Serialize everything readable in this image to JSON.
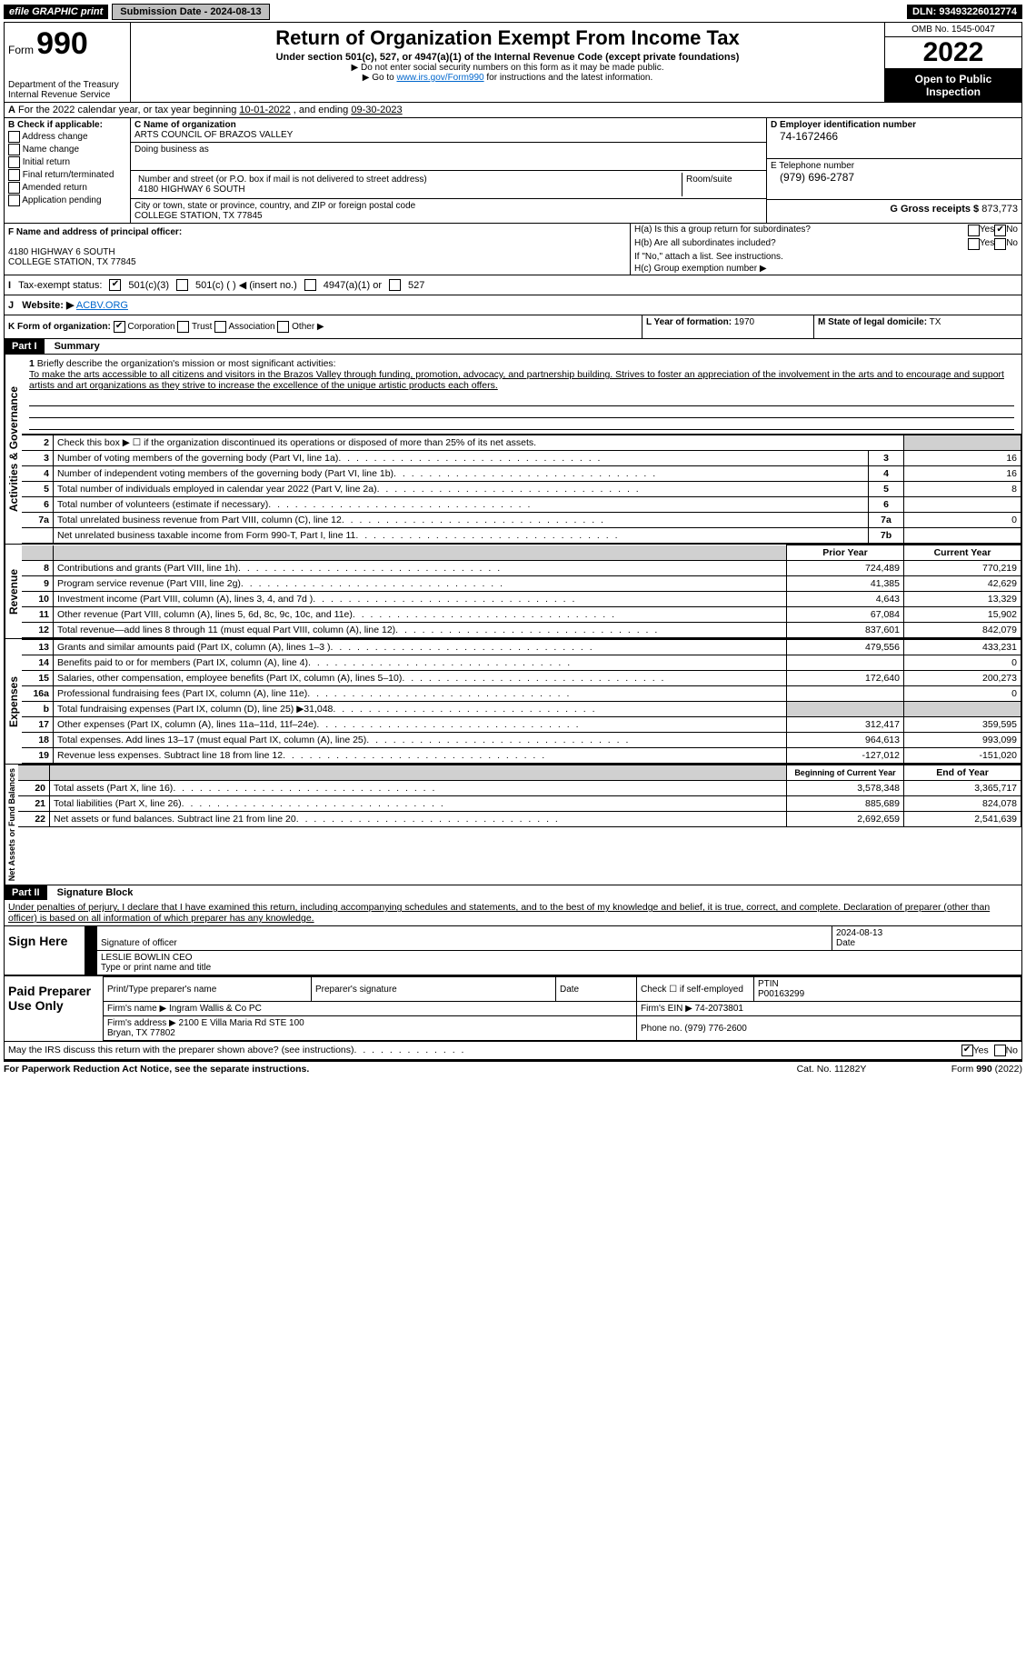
{
  "topbar": {
    "efile": "efile GRAPHIC print",
    "submission": "Submission Date - 2024-08-13",
    "dln": "DLN: 93493226012774"
  },
  "header": {
    "form_label": "Form",
    "form_number": "990",
    "title": "Return of Organization Exempt From Income Tax",
    "subtitle": "Under section 501(c), 527, or 4947(a)(1) of the Internal Revenue Code (except private foundations)",
    "note1": "▶ Do not enter social security numbers on this form as it may be made public.",
    "note2_pre": "▶ Go to ",
    "note2_link": "www.irs.gov/Form990",
    "note2_post": " for instructions and the latest information.",
    "dept": "Department of the Treasury\nInternal Revenue Service",
    "omb": "OMB No. 1545-0047",
    "year": "2022",
    "inspection": "Open to Public Inspection"
  },
  "A": {
    "text_pre": "For the 2022 calendar year, or tax year beginning ",
    "begin": "10-01-2022",
    "mid": " , and ending ",
    "end": "09-30-2023"
  },
  "B": {
    "label": "B Check if applicable:",
    "items": [
      "Address change",
      "Name change",
      "Initial return",
      "Final return/terminated",
      "Amended return",
      "Application pending"
    ]
  },
  "C": {
    "name_label": "C Name of organization",
    "name": "ARTS COUNCIL OF BRAZOS VALLEY",
    "dba_label": "Doing business as",
    "street_label": "Number and street (or P.O. box if mail is not delivered to street address)",
    "room_label": "Room/suite",
    "street": "4180 HIGHWAY 6 SOUTH",
    "city_label": "City or town, state or province, country, and ZIP or foreign postal code",
    "city": "COLLEGE STATION, TX  77845"
  },
  "D": {
    "label": "D Employer identification number",
    "value": "74-1672466"
  },
  "E": {
    "label": "E Telephone number",
    "value": "(979) 696-2787"
  },
  "G": {
    "label": "G Gross receipts $",
    "value": "873,773"
  },
  "F": {
    "label": "F  Name and address of principal officer:",
    "addr1": "4180 HIGHWAY 6 SOUTH",
    "addr2": "COLLEGE STATION, TX  77845"
  },
  "H": {
    "a_label": "H(a)  Is this a group return for subordinates?",
    "a_yes": "Yes",
    "a_no": "No",
    "b_label": "H(b)  Are all subordinates included?",
    "b_yes": "Yes",
    "b_no": "No",
    "b_note": "If \"No,\" attach a list. See instructions.",
    "c_label": "H(c)  Group exemption number ▶"
  },
  "I": {
    "label": "Tax-exempt status:",
    "o1": "501(c)(3)",
    "o2": "501(c) (  ) ◀ (insert no.)",
    "o3": "4947(a)(1) or",
    "o4": "527"
  },
  "J": {
    "label": "Website: ▶",
    "value": "ACBV.ORG"
  },
  "K": {
    "label": "K Form of organization:",
    "o1": "Corporation",
    "o2": "Trust",
    "o3": "Association",
    "o4": "Other ▶"
  },
  "L": {
    "label": "L Year of formation:",
    "value": "1970"
  },
  "M": {
    "label": "M State of legal domicile:",
    "value": "TX"
  },
  "part1": {
    "hdr": "Part I",
    "title": "Summary",
    "side_gov": "Activities & Governance",
    "side_rev": "Revenue",
    "side_exp": "Expenses",
    "side_net": "Net Assets or Fund Balances",
    "q1": "Briefly describe the organization's mission or most significant activities:",
    "q1_text": "To make the arts accessible to all citizens and visitors in the Brazos Valley through funding, promotion, advocacy, and partnership building. Strives to foster an appreciation of the involvement in the arts and to encourage and support artists and art organizations as they strive to increase the excellence of the unique artistic products each offers.",
    "q2": "Check this box ▶ ☐ if the organization discontinued its operations or disposed of more than 25% of its net assets.",
    "rows_gov": [
      {
        "n": "3",
        "desc": "Number of voting members of the governing body (Part VI, line 1a)",
        "box": "3",
        "val": "16"
      },
      {
        "n": "4",
        "desc": "Number of independent voting members of the governing body (Part VI, line 1b)",
        "box": "4",
        "val": "16"
      },
      {
        "n": "5",
        "desc": "Total number of individuals employed in calendar year 2022 (Part V, line 2a)",
        "box": "5",
        "val": "8"
      },
      {
        "n": "6",
        "desc": "Total number of volunteers (estimate if necessary)",
        "box": "6",
        "val": ""
      },
      {
        "n": "7a",
        "desc": "Total unrelated business revenue from Part VIII, column (C), line 12",
        "box": "7a",
        "val": "0"
      },
      {
        "n": "",
        "desc": "Net unrelated business taxable income from Form 990-T, Part I, line 11",
        "box": "7b",
        "val": ""
      }
    ],
    "col_prior": "Prior Year",
    "col_current": "Current Year",
    "rows_rev": [
      {
        "n": "8",
        "desc": "Contributions and grants (Part VIII, line 1h)",
        "p": "724,489",
        "c": "770,219"
      },
      {
        "n": "9",
        "desc": "Program service revenue (Part VIII, line 2g)",
        "p": "41,385",
        "c": "42,629"
      },
      {
        "n": "10",
        "desc": "Investment income (Part VIII, column (A), lines 3, 4, and 7d )",
        "p": "4,643",
        "c": "13,329"
      },
      {
        "n": "11",
        "desc": "Other revenue (Part VIII, column (A), lines 5, 6d, 8c, 9c, 10c, and 11e)",
        "p": "67,084",
        "c": "15,902"
      },
      {
        "n": "12",
        "desc": "Total revenue—add lines 8 through 11 (must equal Part VIII, column (A), line 12)",
        "p": "837,601",
        "c": "842,079"
      }
    ],
    "rows_exp": [
      {
        "n": "13",
        "desc": "Grants and similar amounts paid (Part IX, column (A), lines 1–3 )",
        "p": "479,556",
        "c": "433,231"
      },
      {
        "n": "14",
        "desc": "Benefits paid to or for members (Part IX, column (A), line 4)",
        "p": "",
        "c": "0"
      },
      {
        "n": "15",
        "desc": "Salaries, other compensation, employee benefits (Part IX, column (A), lines 5–10)",
        "p": "172,640",
        "c": "200,273"
      },
      {
        "n": "16a",
        "desc": "Professional fundraising fees (Part IX, column (A), line 11e)",
        "p": "",
        "c": "0"
      },
      {
        "n": "b",
        "desc": "Total fundraising expenses (Part IX, column (D), line 25) ▶31,048",
        "p": "GREY",
        "c": "GREY"
      },
      {
        "n": "17",
        "desc": "Other expenses (Part IX, column (A), lines 11a–11d, 11f–24e)",
        "p": "312,417",
        "c": "359,595"
      },
      {
        "n": "18",
        "desc": "Total expenses. Add lines 13–17 (must equal Part IX, column (A), line 25)",
        "p": "964,613",
        "c": "993,099"
      },
      {
        "n": "19",
        "desc": "Revenue less expenses. Subtract line 18 from line 12",
        "p": "-127,012",
        "c": "-151,020"
      }
    ],
    "col_begin": "Beginning of Current Year",
    "col_end": "End of Year",
    "rows_net": [
      {
        "n": "20",
        "desc": "Total assets (Part X, line 16)",
        "p": "3,578,348",
        "c": "3,365,717"
      },
      {
        "n": "21",
        "desc": "Total liabilities (Part X, line 26)",
        "p": "885,689",
        "c": "824,078"
      },
      {
        "n": "22",
        "desc": "Net assets or fund balances. Subtract line 21 from line 20",
        "p": "2,692,659",
        "c": "2,541,639"
      }
    ]
  },
  "part2": {
    "hdr": "Part II",
    "title": "Signature Block",
    "decl": "Under penalties of perjury, I declare that I have examined this return, including accompanying schedules and statements, and to the best of my knowledge and belief, it is true, correct, and complete. Declaration of preparer (other than officer) is based on all information of which preparer has any knowledge.",
    "sign_here": "Sign Here",
    "sig_officer": "Signature of officer",
    "date_label": "Date",
    "date_val": "2024-08-13",
    "name_title": "LESLIE BOWLIN  CEO",
    "type_name": "Type or print name and title",
    "paid": "Paid Preparer Use Only",
    "prep_name_label": "Print/Type preparer's name",
    "prep_sig_label": "Preparer's signature",
    "prep_date_label": "Date",
    "prep_check": "Check ☐ if self-employed",
    "ptin_label": "PTIN",
    "ptin": "P00163299",
    "firm_name_label": "Firm's name    ▶",
    "firm_name": "Ingram Wallis & Co PC",
    "firm_ein_label": "Firm's EIN ▶",
    "firm_ein": "74-2073801",
    "firm_addr_label": "Firm's address ▶",
    "firm_addr": "2100 E Villa Maria Rd STE 100\nBryan, TX  77802",
    "phone_label": "Phone no.",
    "phone": "(979) 776-2600",
    "may_irs": "May the IRS discuss this return with the preparer shown above? (see instructions)",
    "yes": "Yes",
    "no": "No"
  },
  "footer": {
    "l": "For Paperwork Reduction Act Notice, see the separate instructions.",
    "m": "Cat. No. 11282Y",
    "r": "Form 990 (2022)"
  }
}
